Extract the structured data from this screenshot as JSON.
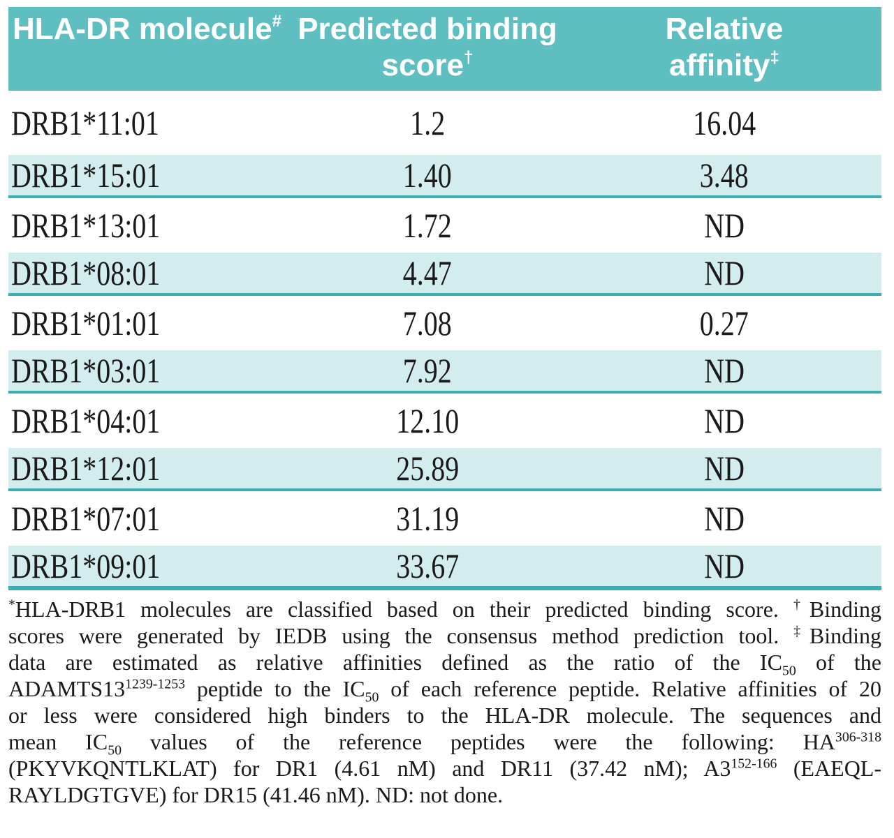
{
  "colors": {
    "header_bg": "#5ebec0",
    "row_shade": "#d3edee",
    "rule": "#3caeb1",
    "header_text": "#ffffff",
    "text": "#1a1a1a"
  },
  "table": {
    "columns": [
      {
        "label": "HLA-DR molecule",
        "marker": "#"
      },
      {
        "line1": "Predicted binding",
        "line2": "score",
        "marker": "†"
      },
      {
        "line1": "Relative",
        "line2": "affinity",
        "marker": "‡"
      }
    ],
    "rows": [
      {
        "molecule": "DRB1*11:01",
        "score": "1.2",
        "affinity": "16.04"
      },
      {
        "molecule": "DRB1*15:01",
        "score": "1.40",
        "affinity": "3.48"
      },
      {
        "molecule": "DRB1*13:01",
        "score": "1.72",
        "affinity": "ND"
      },
      {
        "molecule": "DRB1*08:01",
        "score": "4.47",
        "affinity": "ND"
      },
      {
        "molecule": "DRB1*01:01",
        "score": "7.08",
        "affinity": "0.27"
      },
      {
        "molecule": "DRB1*03:01",
        "score": "7.92",
        "affinity": "ND"
      },
      {
        "molecule": "DRB1*04:01",
        "score": "12.10",
        "affinity": "ND"
      },
      {
        "molecule": "DRB1*12:01",
        "score": "25.89",
        "affinity": "ND"
      },
      {
        "molecule": "DRB1*07:01",
        "score": "31.19",
        "affinity": "ND"
      },
      {
        "molecule": "DRB1*09:01",
        "score": "33.67",
        "affinity": "ND"
      }
    ]
  },
  "footnote": {
    "lines": [
      [
        {
          "t": "sup",
          "s": "*"
        },
        {
          "t": "n",
          "s": "HLA-DRB1 molecules are classified based on their predicted binding score. "
        },
        {
          "t": "sup",
          "s": "†"
        },
        {
          "t": "n",
          "s": "Binding"
        }
      ],
      [
        {
          "t": "n",
          "s": "scores were generated by IEDB using the consensus method prediction tool. "
        },
        {
          "t": "sup",
          "s": "‡"
        },
        {
          "t": "n",
          "s": "Binding"
        }
      ],
      [
        {
          "t": "n",
          "s": "data are estimated as relative affinities defined as the ratio of the IC"
        },
        {
          "t": "sub",
          "s": "50"
        },
        {
          "t": "n",
          "s": " of the"
        }
      ],
      [
        {
          "t": "n",
          "s": "ADAMTS13"
        },
        {
          "t": "sup",
          "s": "1239-1253"
        },
        {
          "t": "n",
          "s": " peptide to the IC"
        },
        {
          "t": "sub",
          "s": "50"
        },
        {
          "t": "n",
          "s": " of each reference peptide. Relative affinities of 20"
        }
      ],
      [
        {
          "t": "n",
          "s": "or less were considered high binders to the HLA-DR molecule. The sequences and"
        }
      ],
      [
        {
          "t": "n",
          "s": "mean IC"
        },
        {
          "t": "sub",
          "s": "50"
        },
        {
          "t": "n",
          "s": " values of the reference peptides were the following: HA"
        },
        {
          "t": "sup",
          "s": "306-318"
        }
      ],
      [
        {
          "t": "n",
          "s": "(PKYVKQNTLKLAT) for DR1 (4.61 nM) and DR11 (37.42 nM); A3"
        },
        {
          "t": "sup",
          "s": "152-166"
        },
        {
          "t": "n",
          "s": " (EAEQL-"
        }
      ],
      [
        {
          "t": "n",
          "s": "RAYLDGTGVE) for DR15 (41.46 nM). ND: not done."
        }
      ]
    ]
  }
}
